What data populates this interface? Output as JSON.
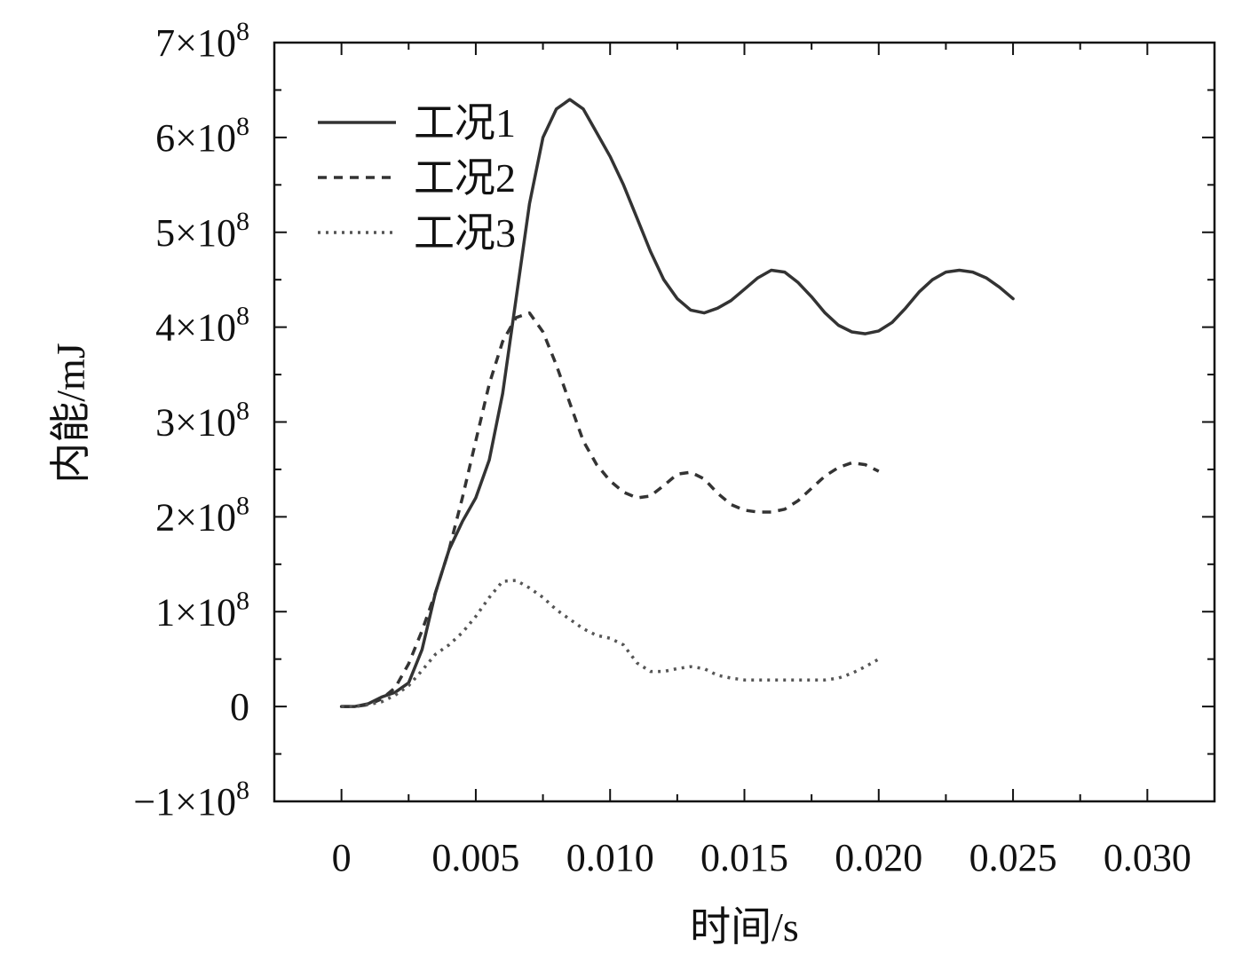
{
  "chart_data": {
    "type": "line",
    "title": "",
    "xlabel": "时间/s",
    "ylabel": "内能/mJ",
    "xlim": [
      -0.0025,
      0.0325
    ],
    "ylim": [
      -100000000,
      700000000
    ],
    "x_ticks": [
      {
        "value": 0,
        "label": "0"
      },
      {
        "value": 0.005,
        "label": "0.005"
      },
      {
        "value": 0.01,
        "label": "0.010"
      },
      {
        "value": 0.015,
        "label": "0.015"
      },
      {
        "value": 0.02,
        "label": "0.020"
      },
      {
        "value": 0.025,
        "label": "0.025"
      },
      {
        "value": 0.03,
        "label": "0.030"
      }
    ],
    "y_ticks": [
      {
        "value": -100000000,
        "label": "−1×10",
        "exp": "8"
      },
      {
        "value": 0,
        "label": "0",
        "exp": ""
      },
      {
        "value": 100000000,
        "label": "1×10",
        "exp": "8"
      },
      {
        "value": 200000000,
        "label": "2×10",
        "exp": "8"
      },
      {
        "value": 300000000,
        "label": "3×10",
        "exp": "8"
      },
      {
        "value": 400000000,
        "label": "4×10",
        "exp": "8"
      },
      {
        "value": 500000000,
        "label": "5×10",
        "exp": "8"
      },
      {
        "value": 600000000,
        "label": "6×10",
        "exp": "8"
      },
      {
        "value": 700000000,
        "label": "7×10",
        "exp": "8"
      }
    ],
    "grid": false,
    "legend_position": "top-left",
    "series": [
      {
        "name": "工况1",
        "style": "solid",
        "color": "#333333",
        "points": [
          [
            0,
            0
          ],
          [
            0.0005,
            0
          ],
          [
            0.001,
            3000000
          ],
          [
            0.0015,
            10000000
          ],
          [
            0.002,
            15000000
          ],
          [
            0.0025,
            25000000
          ],
          [
            0.003,
            60000000
          ],
          [
            0.0035,
            120000000
          ],
          [
            0.004,
            165000000
          ],
          [
            0.0045,
            195000000
          ],
          [
            0.005,
            220000000
          ],
          [
            0.0055,
            260000000
          ],
          [
            0.006,
            330000000
          ],
          [
            0.0065,
            430000000
          ],
          [
            0.007,
            530000000
          ],
          [
            0.0075,
            600000000
          ],
          [
            0.008,
            630000000
          ],
          [
            0.0085,
            640000000
          ],
          [
            0.009,
            630000000
          ],
          [
            0.0095,
            605000000
          ],
          [
            0.01,
            580000000
          ],
          [
            0.0105,
            550000000
          ],
          [
            0.011,
            515000000
          ],
          [
            0.0115,
            480000000
          ],
          [
            0.012,
            450000000
          ],
          [
            0.0125,
            430000000
          ],
          [
            0.013,
            418000000
          ],
          [
            0.0135,
            415000000
          ],
          [
            0.014,
            420000000
          ],
          [
            0.0145,
            428000000
          ],
          [
            0.015,
            440000000
          ],
          [
            0.0155,
            452000000
          ],
          [
            0.016,
            460000000
          ],
          [
            0.0165,
            458000000
          ],
          [
            0.017,
            447000000
          ],
          [
            0.0175,
            432000000
          ],
          [
            0.018,
            415000000
          ],
          [
            0.0185,
            402000000
          ],
          [
            0.019,
            395000000
          ],
          [
            0.0195,
            393000000
          ],
          [
            0.02,
            396000000
          ],
          [
            0.0205,
            405000000
          ],
          [
            0.021,
            420000000
          ],
          [
            0.0215,
            437000000
          ],
          [
            0.022,
            450000000
          ],
          [
            0.0225,
            458000000
          ],
          [
            0.023,
            460000000
          ],
          [
            0.0235,
            458000000
          ],
          [
            0.024,
            452000000
          ],
          [
            0.0245,
            442000000
          ],
          [
            0.025,
            430000000
          ]
        ]
      },
      {
        "name": "工况2",
        "style": "dashed",
        "color": "#333333",
        "points": [
          [
            0,
            0
          ],
          [
            0.0005,
            0
          ],
          [
            0.001,
            2000000
          ],
          [
            0.0015,
            8000000
          ],
          [
            0.002,
            20000000
          ],
          [
            0.0025,
            45000000
          ],
          [
            0.003,
            80000000
          ],
          [
            0.0035,
            120000000
          ],
          [
            0.004,
            165000000
          ],
          [
            0.0045,
            220000000
          ],
          [
            0.005,
            280000000
          ],
          [
            0.0055,
            340000000
          ],
          [
            0.006,
            385000000
          ],
          [
            0.0065,
            410000000
          ],
          [
            0.007,
            415000000
          ],
          [
            0.0075,
            395000000
          ],
          [
            0.008,
            360000000
          ],
          [
            0.0085,
            320000000
          ],
          [
            0.009,
            280000000
          ],
          [
            0.0095,
            255000000
          ],
          [
            0.01,
            238000000
          ],
          [
            0.0105,
            226000000
          ],
          [
            0.011,
            220000000
          ],
          [
            0.0115,
            222000000
          ],
          [
            0.012,
            233000000
          ],
          [
            0.0125,
            245000000
          ],
          [
            0.013,
            247000000
          ],
          [
            0.0135,
            240000000
          ],
          [
            0.014,
            225000000
          ],
          [
            0.0145,
            213000000
          ],
          [
            0.015,
            207000000
          ],
          [
            0.0155,
            205000000
          ],
          [
            0.016,
            205000000
          ],
          [
            0.0165,
            208000000
          ],
          [
            0.017,
            217000000
          ],
          [
            0.0175,
            230000000
          ],
          [
            0.018,
            243000000
          ],
          [
            0.0185,
            252000000
          ],
          [
            0.019,
            257000000
          ],
          [
            0.0195,
            255000000
          ],
          [
            0.02,
            248000000
          ]
        ]
      },
      {
        "name": "工况3",
        "style": "dotted",
        "color": "#555555",
        "points": [
          [
            0,
            0
          ],
          [
            0.0005,
            0
          ],
          [
            0.001,
            2000000
          ],
          [
            0.0015,
            5000000
          ],
          [
            0.002,
            12000000
          ],
          [
            0.0025,
            22000000
          ],
          [
            0.003,
            38000000
          ],
          [
            0.0035,
            55000000
          ],
          [
            0.004,
            65000000
          ],
          [
            0.0045,
            78000000
          ],
          [
            0.005,
            95000000
          ],
          [
            0.0055,
            115000000
          ],
          [
            0.006,
            132000000
          ],
          [
            0.0065,
            133000000
          ],
          [
            0.007,
            125000000
          ],
          [
            0.0075,
            115000000
          ],
          [
            0.008,
            102000000
          ],
          [
            0.0085,
            92000000
          ],
          [
            0.009,
            82000000
          ],
          [
            0.0095,
            75000000
          ],
          [
            0.01,
            72000000
          ],
          [
            0.0105,
            65000000
          ],
          [
            0.011,
            46000000
          ],
          [
            0.0115,
            37000000
          ],
          [
            0.012,
            37000000
          ],
          [
            0.0125,
            40000000
          ],
          [
            0.013,
            42000000
          ],
          [
            0.0135,
            40000000
          ],
          [
            0.014,
            33000000
          ],
          [
            0.0145,
            30000000
          ],
          [
            0.015,
            28000000
          ],
          [
            0.0155,
            28000000
          ],
          [
            0.016,
            28000000
          ],
          [
            0.0165,
            28000000
          ],
          [
            0.017,
            28000000
          ],
          [
            0.0175,
            28000000
          ],
          [
            0.018,
            28000000
          ],
          [
            0.0185,
            30000000
          ],
          [
            0.019,
            35000000
          ],
          [
            0.0195,
            42000000
          ],
          [
            0.02,
            50000000
          ]
        ]
      }
    ]
  }
}
